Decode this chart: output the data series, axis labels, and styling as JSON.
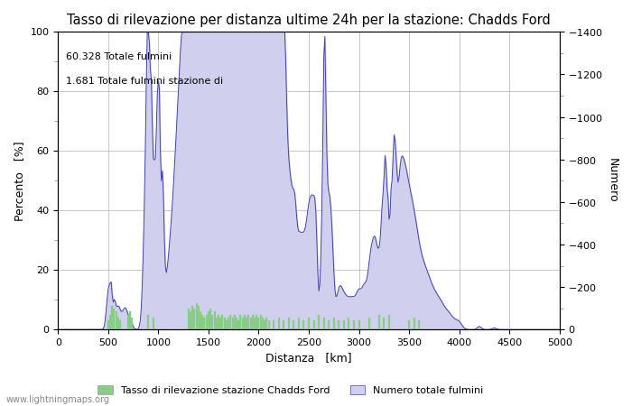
{
  "title": "Tasso di rilevazione per distanza ultime 24h per la stazione: Chadds Ford",
  "xlabel": "Distanza   [km]",
  "ylabel_left": "Percento   [%]",
  "ylabel_right": "Numero",
  "annotation_line1": "60.328 Totale fulmini",
  "annotation_line2": "1.681 Totale fulmini stazione di",
  "xlim": [
    0,
    5000
  ],
  "ylim_left": [
    0,
    100
  ],
  "ylim_right": [
    0,
    1400
  ],
  "xticks": [
    0,
    500,
    1000,
    1500,
    2000,
    2500,
    3000,
    3500,
    4000,
    4500,
    5000
  ],
  "yticks_left": [
    0,
    20,
    40,
    60,
    80,
    100
  ],
  "yticks_right": [
    0,
    200,
    400,
    600,
    800,
    1000,
    1200,
    1400
  ],
  "yticks_right_minor": [
    100,
    300,
    500,
    700,
    900,
    1100,
    1300
  ],
  "yticks_left_minor": [
    10,
    30,
    50,
    70,
    90
  ],
  "legend_green_label": "Tasso di rilevazione stazione Chadds Ford",
  "legend_blue_label": "Numero totale fulmini",
  "watermark": "www.lightningmaps.org",
  "bg_color": "#ffffff",
  "grid_color": "#b0b0b0",
  "blue_fill_color": "#d0d0ee",
  "blue_line_color": "#4444aa",
  "green_bar_color": "#88cc88",
  "green_bar_edge": "#88cc88"
}
